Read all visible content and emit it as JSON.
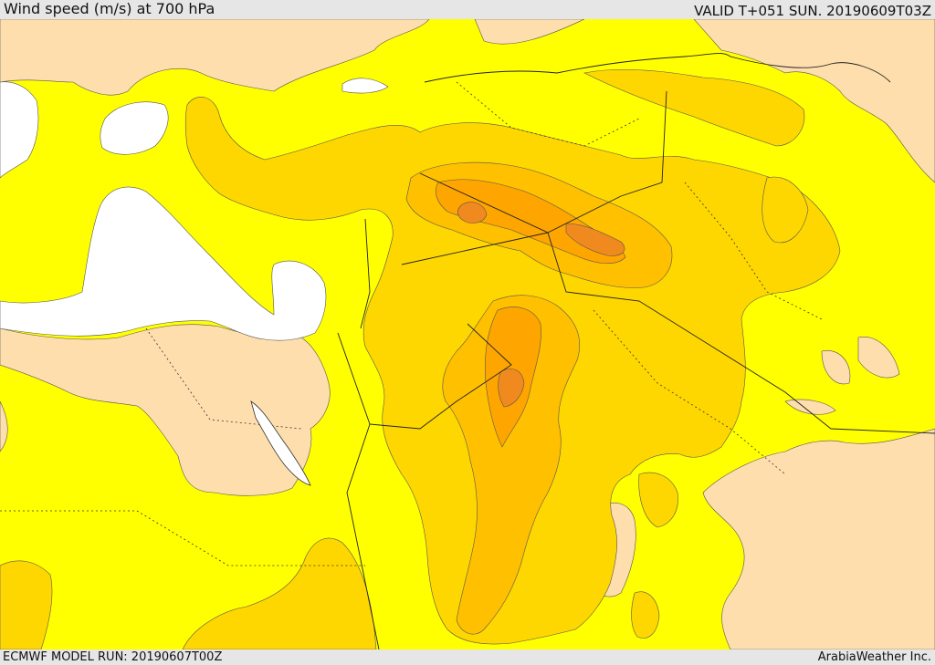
{
  "header": {
    "title": "Wind speed (m/s) at 700 hPa",
    "valid": "VALID T+051 SUN. 20190609T03Z"
  },
  "footer": {
    "model_run": "ECMWF MODEL RUN: 20190607T00Z",
    "credit": "ArabiaWeather Inc."
  },
  "map": {
    "variable": "Wind speed",
    "units": "m/s",
    "level": "700 hPa",
    "colors": {
      "lowest": "#ffffff",
      "low": "#ffff00",
      "moderate": "#ffd700",
      "elevated": "#ffc000",
      "strong": "#ffa500",
      "strongest": "#f08a1e",
      "land_calm": "#ffdead"
    }
  }
}
